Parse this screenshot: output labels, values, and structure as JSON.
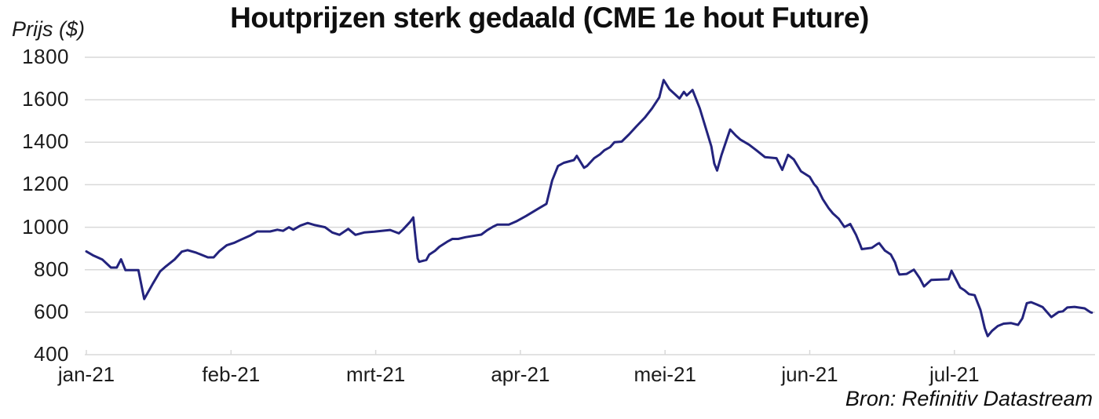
{
  "source_credit": "Bron: Refinitiv Datastream",
  "colors": {
    "line": "#23237d",
    "grid": "#d9d9d9",
    "title_text": "#0f0f0f",
    "axis_text": "#1c1c1c",
    "background": "#ffffff"
  },
  "chart_data": {
    "type": "line",
    "title": "Houtprijzen sterk gedaald (CME 1e hout Future)",
    "ylabel": "Prijs ($)",
    "xlabel": "",
    "ylim": [
      400,
      1800
    ],
    "y_ticks": [
      1800,
      1600,
      1400,
      1200,
      1000,
      800,
      600,
      400
    ],
    "x_tick_labels": [
      "jan-21",
      "feb-21",
      "mrt-21",
      "apr-21",
      "mei-21",
      "jun-21",
      "jul-21"
    ],
    "grid": "horizontal-only",
    "legend": "none",
    "series": [
      {
        "name": "CME 1e hout Future, prijs in $",
        "x_unit": "months since jan-21",
        "points": [
          [
            0.0,
            886
          ],
          [
            0.05,
            866
          ],
          [
            0.11,
            848
          ],
          [
            0.17,
            810
          ],
          [
            0.21,
            810
          ],
          [
            0.24,
            849
          ],
          [
            0.27,
            798
          ],
          [
            0.36,
            798
          ],
          [
            0.4,
            662
          ],
          [
            0.46,
            735
          ],
          [
            0.51,
            792
          ],
          [
            0.55,
            816
          ],
          [
            0.61,
            848
          ],
          [
            0.66,
            885
          ],
          [
            0.7,
            892
          ],
          [
            0.76,
            880
          ],
          [
            0.84,
            858
          ],
          [
            0.88,
            858
          ],
          [
            0.92,
            888
          ],
          [
            0.97,
            915
          ],
          [
            1.02,
            926
          ],
          [
            1.07,
            942
          ],
          [
            1.13,
            960
          ],
          [
            1.18,
            980
          ],
          [
            1.27,
            980
          ],
          [
            1.32,
            988
          ],
          [
            1.36,
            983
          ],
          [
            1.4,
            1000
          ],
          [
            1.43,
            988
          ],
          [
            1.48,
            1008
          ],
          [
            1.53,
            1020
          ],
          [
            1.58,
            1010
          ],
          [
            1.65,
            1000
          ],
          [
            1.7,
            975
          ],
          [
            1.75,
            964
          ],
          [
            1.81,
            992
          ],
          [
            1.86,
            964
          ],
          [
            1.92,
            975
          ],
          [
            1.99,
            979
          ],
          [
            2.06,
            984
          ],
          [
            2.1,
            987
          ],
          [
            2.16,
            971
          ],
          [
            2.19,
            990
          ],
          [
            2.24,
            1027
          ],
          [
            2.26,
            1046
          ],
          [
            2.29,
            853
          ],
          [
            2.3,
            837
          ],
          [
            2.35,
            846
          ],
          [
            2.37,
            871
          ],
          [
            2.41,
            889
          ],
          [
            2.44,
            908
          ],
          [
            2.5,
            934
          ],
          [
            2.53,
            945
          ],
          [
            2.57,
            945
          ],
          [
            2.62,
            953
          ],
          [
            2.7,
            962
          ],
          [
            2.73,
            965
          ],
          [
            2.77,
            986
          ],
          [
            2.81,
            1002
          ],
          [
            2.84,
            1012
          ],
          [
            2.92,
            1012
          ],
          [
            2.97,
            1027
          ],
          [
            3.04,
            1053
          ],
          [
            3.13,
            1090
          ],
          [
            3.18,
            1110
          ],
          [
            3.22,
            1220
          ],
          [
            3.26,
            1288
          ],
          [
            3.3,
            1303
          ],
          [
            3.37,
            1316
          ],
          [
            3.39,
            1336
          ],
          [
            3.44,
            1280
          ],
          [
            3.46,
            1288
          ],
          [
            3.51,
            1325
          ],
          [
            3.55,
            1343
          ],
          [
            3.58,
            1362
          ],
          [
            3.62,
            1377
          ],
          [
            3.65,
            1400
          ],
          [
            3.7,
            1403
          ],
          [
            3.75,
            1436
          ],
          [
            3.8,
            1473
          ],
          [
            3.86,
            1516
          ],
          [
            3.91,
            1559
          ],
          [
            3.96,
            1611
          ],
          [
            3.99,
            1693
          ],
          [
            4.03,
            1650
          ],
          [
            4.07,
            1625
          ],
          [
            4.1,
            1606
          ],
          [
            4.13,
            1637
          ],
          [
            4.15,
            1620
          ],
          [
            4.19,
            1646
          ],
          [
            4.24,
            1560
          ],
          [
            4.28,
            1470
          ],
          [
            4.32,
            1380
          ],
          [
            4.34,
            1300
          ],
          [
            4.36,
            1267
          ],
          [
            4.39,
            1340
          ],
          [
            4.43,
            1420
          ],
          [
            4.45,
            1460
          ],
          [
            4.49,
            1431
          ],
          [
            4.52,
            1413
          ],
          [
            4.58,
            1389
          ],
          [
            4.63,
            1363
          ],
          [
            4.69,
            1330
          ],
          [
            4.77,
            1325
          ],
          [
            4.81,
            1270
          ],
          [
            4.85,
            1341
          ],
          [
            4.89,
            1319
          ],
          [
            4.94,
            1263
          ],
          [
            5.0,
            1237
          ],
          [
            5.03,
            1203
          ],
          [
            5.05,
            1188
          ],
          [
            5.09,
            1132
          ],
          [
            5.13,
            1090
          ],
          [
            5.16,
            1065
          ],
          [
            5.2,
            1040
          ],
          [
            5.24,
            1001
          ],
          [
            5.28,
            1015
          ],
          [
            5.32,
            964
          ],
          [
            5.35,
            915
          ],
          [
            5.36,
            897
          ],
          [
            5.43,
            903
          ],
          [
            5.47,
            922
          ],
          [
            5.48,
            925
          ],
          [
            5.52,
            890
          ],
          [
            5.56,
            872
          ],
          [
            5.59,
            834
          ],
          [
            5.61,
            791
          ],
          [
            5.62,
            777
          ],
          [
            5.67,
            780
          ],
          [
            5.72,
            800
          ],
          [
            5.76,
            760
          ],
          [
            5.79,
            721
          ],
          [
            5.84,
            752
          ],
          [
            5.96,
            755
          ],
          [
            5.98,
            795
          ],
          [
            6.04,
            716
          ],
          [
            6.07,
            703
          ],
          [
            6.1,
            685
          ],
          [
            6.14,
            680
          ],
          [
            6.18,
            610
          ],
          [
            6.21,
            524
          ],
          [
            6.23,
            487
          ],
          [
            6.26,
            512
          ],
          [
            6.3,
            535
          ],
          [
            6.34,
            546
          ],
          [
            6.39,
            549
          ],
          [
            6.44,
            540
          ],
          [
            6.47,
            571
          ],
          [
            6.5,
            642
          ],
          [
            6.53,
            647
          ],
          [
            6.57,
            636
          ],
          [
            6.61,
            624
          ],
          [
            6.67,
            577
          ],
          [
            6.72,
            601
          ],
          [
            6.75,
            604
          ],
          [
            6.78,
            622
          ],
          [
            6.83,
            625
          ],
          [
            6.9,
            618
          ],
          [
            6.94,
            600
          ],
          [
            6.95,
            598
          ]
        ]
      }
    ]
  }
}
